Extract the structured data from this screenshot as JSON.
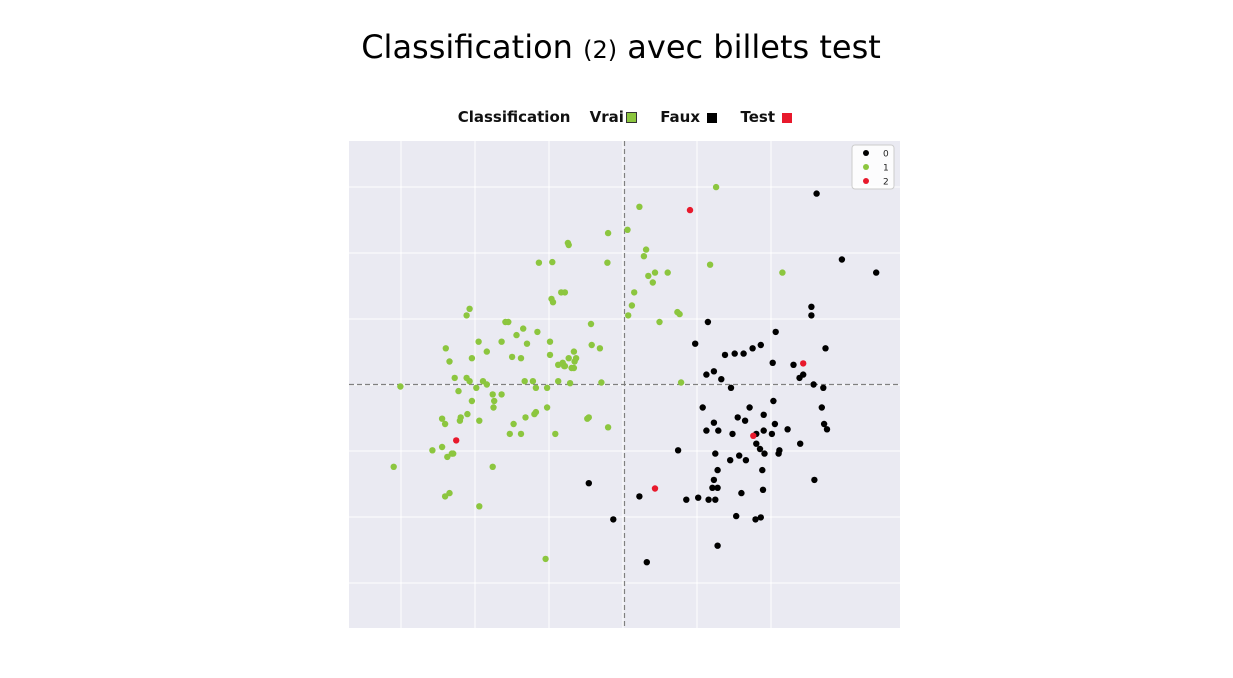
{
  "title": {
    "main_before": "Classification ",
    "main_small": "(2)",
    "main_after": " avec billets test"
  },
  "header_legend": {
    "label": "Classification",
    "vrai": "Vrai",
    "faux": "Faux",
    "test": "Test"
  },
  "colors": {
    "class_0": "#000000",
    "class_1": "#8cc63f",
    "class_2": "#e8192c",
    "plot_bg": "#eaeaf2",
    "grid": "#ffffff",
    "axis_line": "#808080"
  },
  "chart_data": {
    "type": "scatter",
    "grid": true,
    "legend_placement": "top-right",
    "xlim": [
      -3.7,
      3.7
    ],
    "ylim": [
      -3.7,
      3.7
    ],
    "legend": [
      "0",
      "1",
      "2"
    ],
    "series": [
      {
        "name": "0",
        "color": "#000000",
        "points": [
          [
            2.58,
            2.9
          ],
          [
            2.92,
            1.9
          ],
          [
            3.38,
            1.7
          ],
          [
            1.12,
            0.95
          ],
          [
            2.51,
            1.18
          ],
          [
            2.51,
            1.05
          ],
          [
            2.03,
            0.8
          ],
          [
            2.7,
            0.55
          ],
          [
            1.83,
            0.6
          ],
          [
            2.27,
            0.3
          ],
          [
            2.35,
            0.1
          ],
          [
            0.95,
            0.62
          ],
          [
            1.35,
            0.45
          ],
          [
            1.48,
            0.47
          ],
          [
            1.6,
            0.47
          ],
          [
            1.72,
            0.55
          ],
          [
            1.99,
            0.33
          ],
          [
            2.4,
            0.15
          ],
          [
            1.1,
            0.15
          ],
          [
            1.2,
            0.2
          ],
          [
            1.3,
            0.08
          ],
          [
            2.54,
            0.0
          ],
          [
            2.67,
            -0.05
          ],
          [
            1.43,
            -0.05
          ],
          [
            1.05,
            -0.35
          ],
          [
            1.68,
            -0.35
          ],
          [
            2.0,
            -0.25
          ],
          [
            1.2,
            -0.58
          ],
          [
            1.52,
            -0.5
          ],
          [
            1.62,
            -0.55
          ],
          [
            1.87,
            -0.46
          ],
          [
            2.19,
            -0.68
          ],
          [
            2.65,
            -0.35
          ],
          [
            1.1,
            -0.7
          ],
          [
            1.26,
            -0.7
          ],
          [
            1.45,
            -0.75
          ],
          [
            1.77,
            -0.75
          ],
          [
            1.87,
            -0.7
          ],
          [
            2.02,
            -0.6
          ],
          [
            1.98,
            -0.75
          ],
          [
            2.68,
            -0.6
          ],
          [
            2.72,
            -0.68
          ],
          [
            1.77,
            -0.9
          ],
          [
            2.36,
            -0.9
          ],
          [
            0.72,
            -1.0
          ],
          [
            1.22,
            -1.05
          ],
          [
            1.54,
            -1.08
          ],
          [
            1.82,
            -0.98
          ],
          [
            1.88,
            -1.05
          ],
          [
            2.07,
            -1.05
          ],
          [
            2.08,
            -1.0
          ],
          [
            1.42,
            -1.15
          ],
          [
            1.63,
            -1.15
          ],
          [
            1.85,
            -1.3
          ],
          [
            1.25,
            -1.3
          ],
          [
            1.2,
            -1.45
          ],
          [
            1.25,
            -1.57
          ],
          [
            1.18,
            -1.57
          ],
          [
            1.86,
            -1.6
          ],
          [
            -0.48,
            -1.5
          ],
          [
            0.2,
            -1.7
          ],
          [
            0.83,
            -1.75
          ],
          [
            0.99,
            -1.72
          ],
          [
            1.13,
            -1.75
          ],
          [
            1.22,
            -1.75
          ],
          [
            1.57,
            -1.65
          ],
          [
            2.55,
            -1.45
          ],
          [
            1.5,
            -2.0
          ],
          [
            1.76,
            -2.05
          ],
          [
            1.83,
            -2.02
          ],
          [
            -0.15,
            -2.05
          ],
          [
            1.25,
            -2.45
          ],
          [
            0.3,
            -2.7
          ]
        ]
      },
      {
        "name": "1",
        "color": "#8cc63f",
        "points": [
          [
            1.23,
            3.0
          ],
          [
            0.2,
            2.7
          ],
          [
            0.04,
            2.35
          ],
          [
            -0.22,
            2.3
          ],
          [
            -0.76,
            2.15
          ],
          [
            -0.75,
            2.12
          ],
          [
            0.29,
            2.05
          ],
          [
            0.26,
            1.95
          ],
          [
            -0.23,
            1.85
          ],
          [
            0.41,
            1.7
          ],
          [
            0.58,
            1.7
          ],
          [
            1.15,
            1.82
          ],
          [
            2.12,
            1.7
          ],
          [
            0.32,
            1.65
          ],
          [
            0.38,
            1.55
          ],
          [
            -1.15,
            1.85
          ],
          [
            -0.97,
            1.86
          ],
          [
            -0.85,
            1.4
          ],
          [
            -0.8,
            1.4
          ],
          [
            -0.96,
            1.25
          ],
          [
            0.13,
            1.4
          ],
          [
            0.1,
            1.2
          ],
          [
            -2.08,
            1.15
          ],
          [
            -2.12,
            1.05
          ],
          [
            -0.98,
            1.3
          ],
          [
            0.71,
            1.1
          ],
          [
            0.74,
            1.07
          ],
          [
            0.05,
            1.05
          ],
          [
            0.47,
            0.95
          ],
          [
            -1.6,
            0.95
          ],
          [
            -1.56,
            0.95
          ],
          [
            -0.45,
            0.92
          ],
          [
            -1.36,
            0.85
          ],
          [
            -1.17,
            0.8
          ],
          [
            -1.45,
            0.75
          ],
          [
            -2.4,
            0.55
          ],
          [
            -1.65,
            0.65
          ],
          [
            -1.96,
            0.65
          ],
          [
            -1.31,
            0.62
          ],
          [
            -1.0,
            0.65
          ],
          [
            -1.0,
            0.45
          ],
          [
            -1.85,
            0.5
          ],
          [
            -0.68,
            0.5
          ],
          [
            -0.44,
            0.6
          ],
          [
            -0.33,
            0.55
          ],
          [
            -2.05,
            0.4
          ],
          [
            -1.51,
            0.42
          ],
          [
            -1.39,
            0.4
          ],
          [
            -0.75,
            0.4
          ],
          [
            -2.35,
            0.35
          ],
          [
            -0.89,
            0.3
          ],
          [
            -0.81,
            0.28
          ],
          [
            -0.71,
            0.25
          ],
          [
            -0.8,
            0.28
          ],
          [
            -0.83,
            0.33
          ],
          [
            -0.68,
            0.25
          ],
          [
            -0.65,
            0.4
          ],
          [
            -0.67,
            0.35
          ],
          [
            -2.12,
            0.1
          ],
          [
            -2.28,
            0.1
          ],
          [
            -2.08,
            0.05
          ],
          [
            -1.9,
            0.05
          ],
          [
            -1.85,
            0.0
          ],
          [
            -1.34,
            0.05
          ],
          [
            -1.23,
            0.05
          ],
          [
            -0.89,
            0.05
          ],
          [
            -0.73,
            0.02
          ],
          [
            -0.31,
            0.03
          ],
          [
            0.76,
            0.03
          ],
          [
            -3.01,
            -0.03
          ],
          [
            -2.23,
            -0.1
          ],
          [
            -1.99,
            -0.05
          ],
          [
            -1.77,
            -0.15
          ],
          [
            -1.65,
            -0.15
          ],
          [
            -1.19,
            -0.05
          ],
          [
            -1.04,
            -0.05
          ],
          [
            -2.05,
            -0.25
          ],
          [
            -1.75,
            -0.25
          ],
          [
            -1.76,
            -0.35
          ],
          [
            -2.11,
            -0.45
          ],
          [
            -2.2,
            -0.5
          ],
          [
            -2.21,
            -0.55
          ],
          [
            -2.45,
            -0.52
          ],
          [
            -1.95,
            -0.55
          ],
          [
            -1.33,
            -0.5
          ],
          [
            -1.19,
            -0.42
          ],
          [
            -1.21,
            -0.45
          ],
          [
            -0.5,
            -0.52
          ],
          [
            -1.49,
            -0.6
          ],
          [
            -1.04,
            -0.35
          ],
          [
            -0.22,
            -0.65
          ],
          [
            -0.48,
            -0.5
          ],
          [
            -2.41,
            -0.6
          ],
          [
            -0.93,
            -0.75
          ],
          [
            -1.39,
            -0.75
          ],
          [
            -1.54,
            -0.75
          ],
          [
            -2.45,
            -0.95
          ],
          [
            -2.58,
            -1.0
          ],
          [
            -2.32,
            -1.05
          ],
          [
            -2.3,
            -1.05
          ],
          [
            -2.38,
            -1.1
          ],
          [
            -3.1,
            -1.25
          ],
          [
            -1.77,
            -1.25
          ],
          [
            -2.35,
            -1.65
          ],
          [
            -2.41,
            -1.7
          ],
          [
            -1.95,
            -1.85
          ],
          [
            -1.06,
            -2.65
          ]
        ]
      },
      {
        "name": "2",
        "color": "#e8192c",
        "points": [
          [
            0.88,
            2.65
          ],
          [
            2.4,
            0.32
          ],
          [
            -2.26,
            -0.85
          ],
          [
            1.73,
            -0.78
          ],
          [
            0.41,
            -1.58
          ]
        ]
      }
    ]
  }
}
